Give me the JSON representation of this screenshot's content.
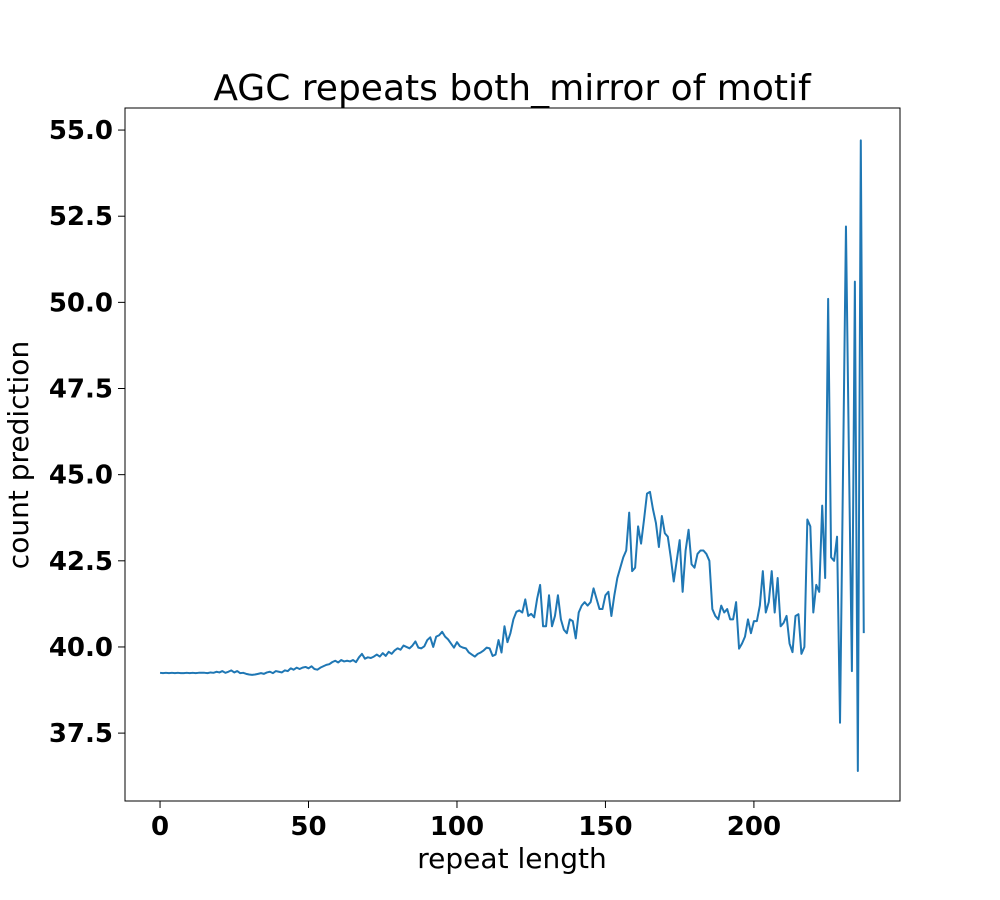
{
  "chart_data": {
    "type": "line",
    "title": "AGC repeats both_mirror of motif",
    "xlabel": "repeat length",
    "ylabel": "count prediction",
    "x": [
      0,
      1,
      2,
      3,
      4,
      5,
      6,
      7,
      8,
      9,
      10,
      11,
      12,
      13,
      14,
      15,
      16,
      17,
      18,
      19,
      20,
      21,
      22,
      23,
      24,
      25,
      26,
      27,
      28,
      29,
      30,
      31,
      32,
      33,
      34,
      35,
      36,
      37,
      38,
      39,
      40,
      41,
      42,
      43,
      44,
      45,
      46,
      47,
      48,
      49,
      50,
      51,
      52,
      53,
      54,
      55,
      56,
      57,
      58,
      59,
      60,
      61,
      62,
      63,
      64,
      65,
      66,
      67,
      68,
      69,
      70,
      71,
      72,
      73,
      74,
      75,
      76,
      77,
      78,
      79,
      80,
      81,
      82,
      83,
      84,
      85,
      86,
      87,
      88,
      89,
      90,
      91,
      92,
      93,
      94,
      95,
      96,
      97,
      98,
      99,
      100,
      101,
      102,
      103,
      104,
      105,
      106,
      107,
      108,
      109,
      110,
      111,
      112,
      113,
      114,
      115,
      116,
      117,
      118,
      119,
      120,
      121,
      122,
      123,
      124,
      125,
      126,
      127,
      128,
      129,
      130,
      131,
      132,
      133,
      134,
      135,
      136,
      137,
      138,
      139,
      140,
      141,
      142,
      143,
      144,
      145,
      146,
      147,
      148,
      149,
      150,
      151,
      152,
      153,
      154,
      155,
      156,
      157,
      158,
      159,
      160,
      161,
      162,
      163,
      164,
      165,
      166,
      167,
      168,
      169,
      170,
      171,
      172,
      173,
      174,
      175,
      176,
      177,
      178,
      179,
      180,
      181,
      182,
      183,
      184,
      185,
      186,
      187,
      188,
      189,
      190,
      191,
      192,
      193,
      194,
      195,
      196,
      197,
      198,
      199,
      200,
      201,
      202,
      203,
      204,
      205,
      206,
      207,
      208,
      209,
      210,
      211,
      212,
      213,
      214,
      215,
      216,
      217,
      218,
      219,
      220,
      221,
      222,
      223,
      224,
      225,
      226,
      227,
      228,
      229,
      230,
      231,
      232,
      233,
      234,
      235,
      236,
      237
    ],
    "series": [
      {
        "name": "count prediction",
        "color": "#1f77b4",
        "values": [
          39.25,
          39.24,
          39.25,
          39.24,
          39.25,
          39.24,
          39.25,
          39.24,
          39.24,
          39.25,
          39.24,
          39.25,
          39.24,
          39.25,
          39.25,
          39.25,
          39.24,
          39.26,
          39.25,
          39.28,
          39.26,
          39.3,
          39.25,
          39.28,
          39.32,
          39.26,
          39.3,
          39.24,
          39.25,
          39.22,
          39.2,
          39.19,
          39.2,
          39.22,
          39.24,
          39.22,
          39.26,
          39.28,
          39.24,
          39.3,
          39.28,
          39.26,
          39.32,
          39.3,
          39.38,
          39.34,
          39.4,
          39.36,
          39.4,
          39.42,
          39.38,
          39.44,
          39.36,
          39.34,
          39.4,
          39.44,
          39.48,
          39.5,
          39.56,
          39.6,
          39.55,
          39.62,
          39.58,
          39.6,
          39.58,
          39.62,
          39.56,
          39.7,
          39.8,
          39.66,
          39.7,
          39.68,
          39.72,
          39.78,
          39.72,
          39.82,
          39.74,
          39.86,
          39.8,
          39.9,
          39.96,
          39.92,
          40.04,
          40.0,
          39.96,
          40.04,
          40.16,
          39.98,
          39.96,
          40.02,
          40.2,
          40.28,
          40.0,
          40.3,
          40.34,
          40.44,
          40.3,
          40.22,
          40.1,
          39.98,
          40.14,
          40.02,
          39.98,
          39.96,
          39.84,
          39.78,
          39.72,
          39.8,
          39.84,
          39.9,
          39.98,
          39.96,
          39.74,
          39.78,
          40.2,
          39.84,
          40.6,
          40.14,
          40.4,
          40.8,
          41.02,
          41.06,
          41.0,
          41.38,
          40.9,
          40.96,
          40.86,
          41.4,
          41.8,
          40.6,
          40.6,
          41.5,
          40.6,
          40.9,
          41.5,
          40.8,
          40.5,
          40.4,
          40.8,
          40.75,
          40.25,
          41.0,
          41.2,
          41.3,
          41.2,
          41.3,
          41.7,
          41.4,
          41.1,
          41.1,
          41.5,
          41.6,
          40.9,
          41.5,
          42.0,
          42.3,
          42.6,
          42.8,
          43.9,
          42.2,
          42.3,
          43.5,
          43.0,
          43.7,
          44.45,
          44.5,
          44.0,
          43.6,
          42.9,
          43.8,
          43.3,
          43.2,
          42.6,
          41.9,
          42.5,
          43.1,
          41.6,
          42.8,
          43.4,
          42.4,
          42.3,
          42.7,
          42.8,
          42.8,
          42.7,
          42.5,
          41.1,
          40.9,
          40.8,
          41.2,
          41.0,
          41.1,
          40.8,
          40.8,
          41.3,
          39.95,
          40.1,
          40.3,
          40.8,
          40.4,
          40.75,
          40.75,
          41.2,
          42.2,
          41.0,
          41.3,
          42.2,
          41.0,
          42.0,
          40.6,
          40.7,
          40.9,
          40.1,
          39.85,
          40.9,
          40.95,
          39.8,
          40.0,
          43.7,
          43.5,
          41.0,
          41.8,
          41.6,
          44.1,
          42.0,
          50.1,
          42.6,
          42.5,
          43.2,
          37.8,
          45.0,
          52.2,
          45.5,
          39.3,
          50.6,
          36.4,
          54.7,
          40.4
        ]
      }
    ],
    "xlim": [
      -11.8,
      249.2
    ],
    "ylim": [
      35.53,
      55.64
    ],
    "xticks": [
      0,
      50,
      100,
      150,
      200
    ],
    "yticks": [
      37.5,
      {
        "value": 40,
        "label": "40.0"
      },
      42.5,
      {
        "value": 45,
        "label": "45.0"
      },
      47.5,
      {
        "value": 50,
        "label": "50.0"
      },
      52.5,
      {
        "value": 55,
        "label": "55.0"
      }
    ]
  }
}
